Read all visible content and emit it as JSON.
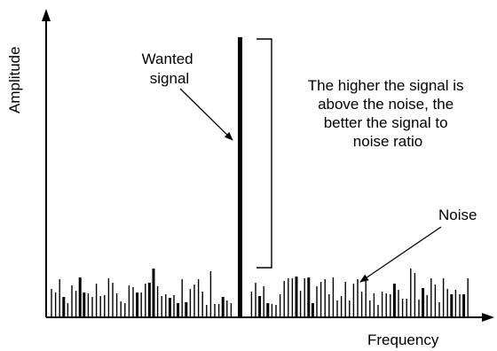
{
  "axes": {
    "y_label": "Amplitude",
    "x_label": "Frequency"
  },
  "labels": {
    "signal": [
      "Wanted",
      "signal"
    ],
    "explanation": [
      "The higher the signal is",
      "above the noise, the",
      "better the signal to",
      "noise ratio"
    ],
    "noise": "Noise"
  },
  "colors": {
    "ink": "#000000",
    "background": "#ffffff"
  }
}
